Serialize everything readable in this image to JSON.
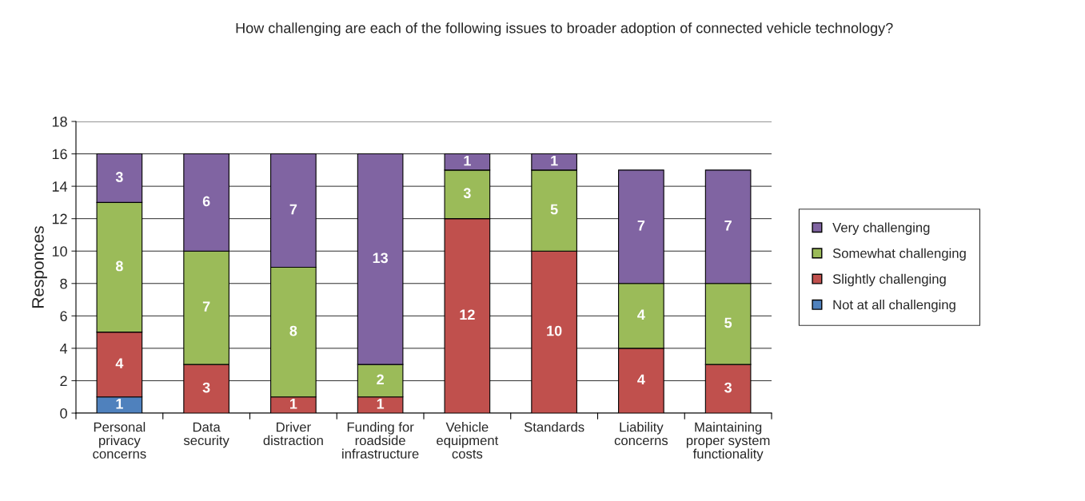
{
  "chart_data": {
    "type": "bar",
    "stacked": true,
    "title": "How challenging are each of the following issues to broader adoption of connected vehicle technology?",
    "ylabel": "Responces",
    "categories": [
      "Personal\nprivacy\nconcerns",
      "Data\nsecurity",
      "Driver\ndistraction",
      "Funding for\nroadside\ninfrastructure",
      "Vehicle\nequipment\ncosts",
      "Standards",
      "Liability\nconcerns",
      "Maintaining\nproper system\nfunctionality"
    ],
    "series": [
      {
        "name": "Not at all challenging",
        "color": "#4f81bd",
        "values": [
          1,
          0,
          0,
          0,
          0,
          0,
          0,
          0
        ],
        "value_labels": [
          "1",
          null,
          null,
          null,
          null,
          null,
          null,
          null
        ]
      },
      {
        "name": "Slightly challenging",
        "color": "#c0504d",
        "values": [
          4,
          3,
          1,
          1,
          12,
          10,
          4,
          3
        ],
        "value_labels": [
          "4",
          "3",
          "1",
          "1",
          "12",
          "10",
          "4",
          "3"
        ]
      },
      {
        "name": "Somewhat challenging",
        "color": "#9bbb59",
        "values": [
          8,
          7,
          8,
          2,
          3,
          5,
          4,
          5
        ],
        "value_labels": [
          "8",
          "7",
          "8",
          "2",
          "3",
          "5",
          "4",
          "5"
        ]
      },
      {
        "name": "Very challenging",
        "color": "#8064a2",
        "values": [
          3,
          6,
          7,
          13,
          1,
          1,
          7,
          7
        ],
        "value_labels": [
          "3",
          "6",
          "7",
          "13",
          "1",
          "1",
          "7",
          "7"
        ]
      }
    ],
    "ylim": [
      0,
      18
    ],
    "yticks": [
      0,
      2,
      4,
      6,
      8,
      10,
      12,
      14,
      16,
      18
    ],
    "grid": "y",
    "legend": "right"
  }
}
